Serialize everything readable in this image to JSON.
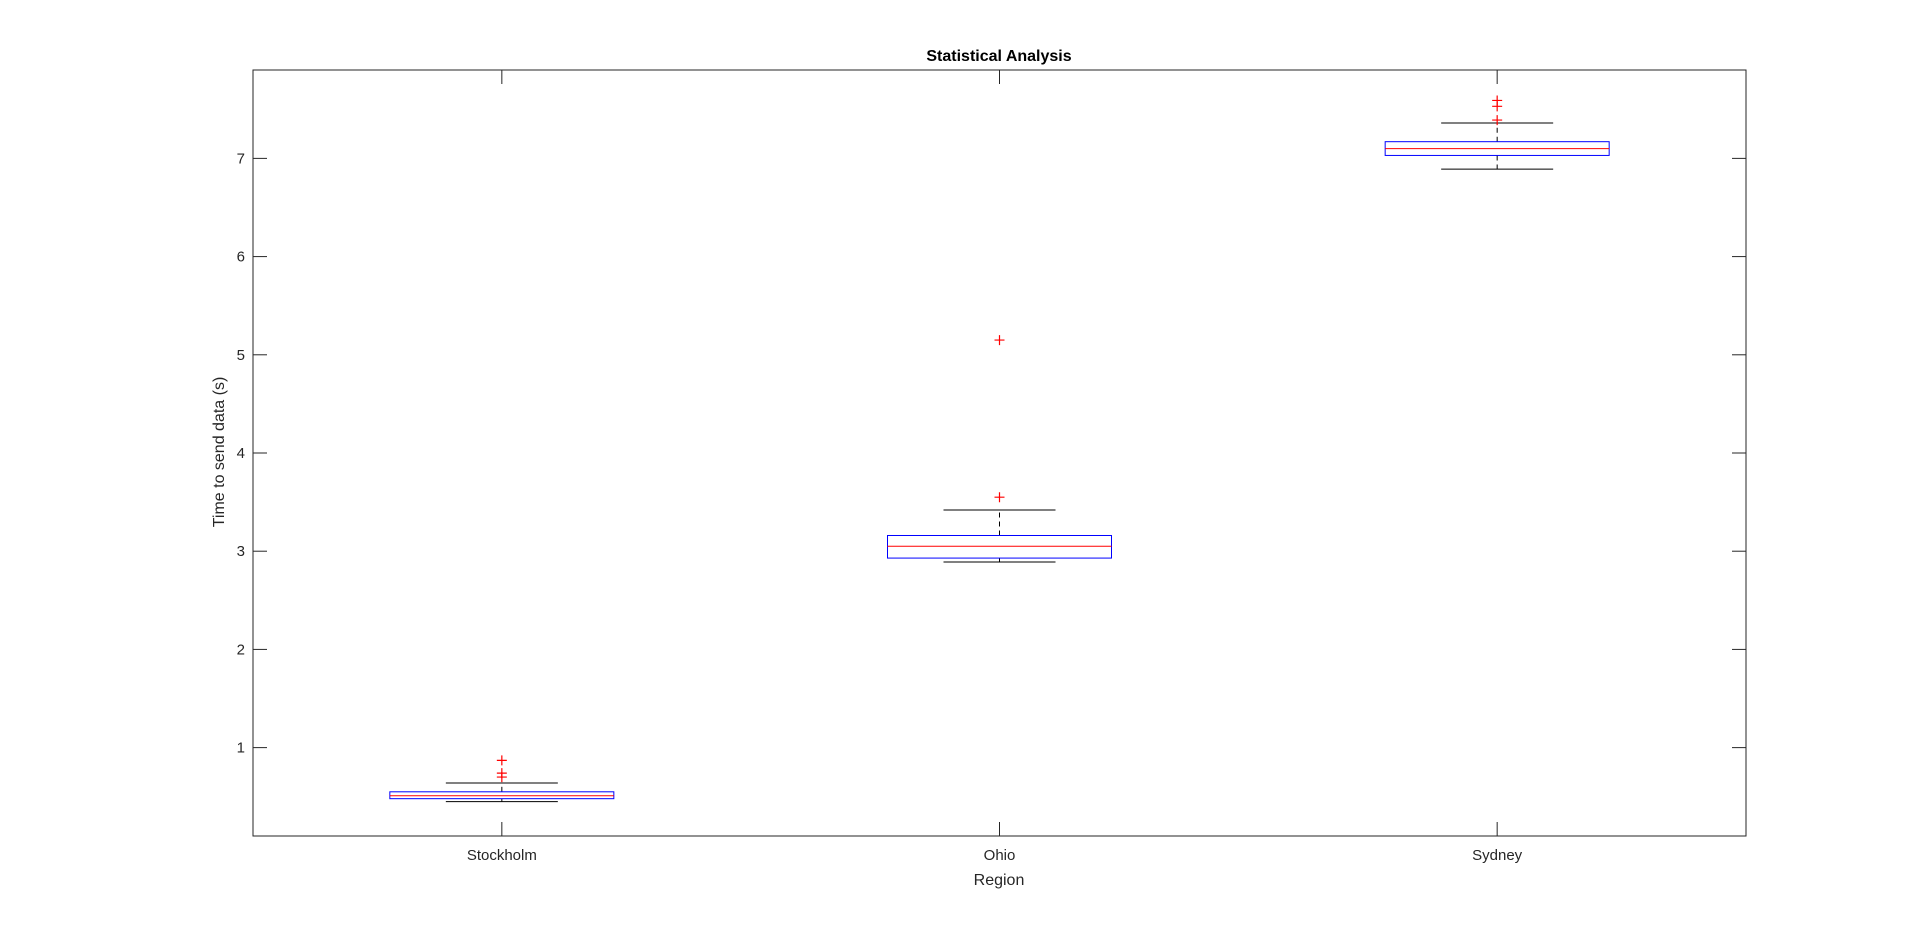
{
  "chart_data": {
    "type": "boxplot",
    "title": "Statistical Analysis",
    "xlabel": "Region",
    "ylabel": "Time to send data (s)",
    "categories": [
      "Stockholm",
      "Ohio",
      "Sydney"
    ],
    "ylim": [
      0.1,
      7.9
    ],
    "yticks": [
      1,
      2,
      3,
      4,
      5,
      6,
      7
    ],
    "box_color": "#0000ff",
    "median_color": "#ff0000",
    "whisker_color": "#000000",
    "outlier_color": "#ff0000",
    "boxes": [
      {
        "category": "Stockholm",
        "whisker_low": 0.45,
        "q1": 0.48,
        "median": 0.51,
        "q3": 0.55,
        "whisker_high": 0.64,
        "outliers": [
          0.87,
          0.74,
          0.7
        ]
      },
      {
        "category": "Ohio",
        "whisker_low": 2.89,
        "q1": 2.93,
        "median": 3.05,
        "q3": 3.16,
        "whisker_high": 3.42,
        "outliers": [
          3.55,
          5.15
        ]
      },
      {
        "category": "Sydney",
        "whisker_low": 6.89,
        "q1": 7.03,
        "median": 7.1,
        "q3": 7.17,
        "whisker_high": 7.36,
        "outliers": [
          7.39,
          7.53,
          7.59
        ]
      }
    ],
    "grid": false,
    "legend": "none"
  }
}
